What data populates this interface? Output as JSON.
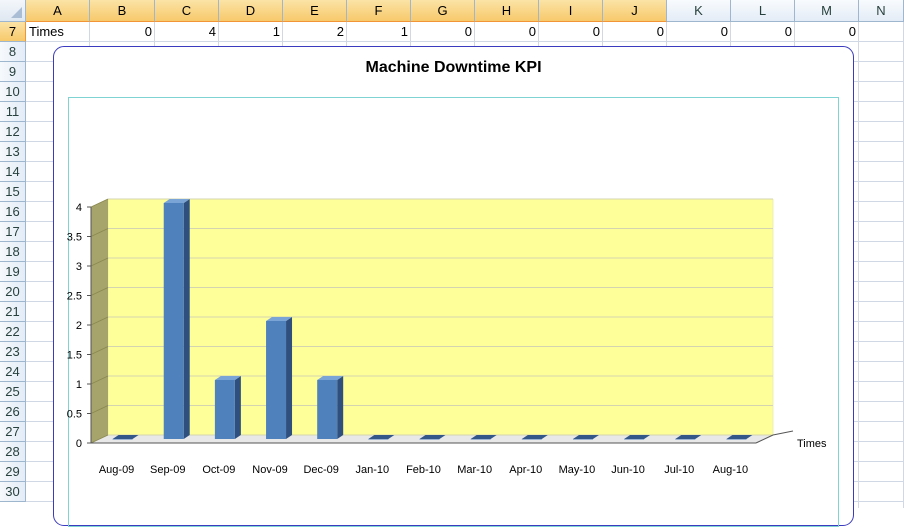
{
  "sheet": {
    "columns": [
      "A",
      "B",
      "C",
      "D",
      "E",
      "F",
      "G",
      "H",
      "I",
      "J",
      "K",
      "L",
      "M",
      "N"
    ],
    "rows": [
      "7",
      "8",
      "9",
      "10",
      "11",
      "12",
      "13",
      "14",
      "15",
      "16",
      "17",
      "18",
      "19",
      "20",
      "21",
      "22",
      "23",
      "24",
      "25",
      "26",
      "27",
      "28",
      "29",
      "30"
    ],
    "row7": {
      "label": "Times",
      "values": [
        "0",
        "4",
        "1",
        "2",
        "1",
        "0",
        "0",
        "0",
        "0",
        "0",
        "0",
        "0"
      ]
    }
  },
  "chart": {
    "title": "Machine Downtime KPI",
    "colors": {
      "wall": "#ffff99",
      "side_wall": "#a6a46a",
      "bar": "#4f81bd",
      "bar_top": "#7aa3d6",
      "bar_side": "#2f4f7f"
    }
  },
  "chart_data": {
    "type": "bar",
    "title": "Machine Downtime KPI",
    "categories": [
      "Aug-09",
      "Sep-09",
      "Oct-09",
      "Nov-09",
      "Dec-09",
      "Jan-10",
      "Feb-10",
      "Mar-10",
      "Apr-10",
      "May-10",
      "Jun-10",
      "Jul-10",
      "Aug-10"
    ],
    "series": [
      {
        "name": "Times",
        "values": [
          0,
          4,
          1,
          2,
          1,
          0,
          0,
          0,
          0,
          0,
          0,
          0,
          0
        ]
      }
    ],
    "ylim": [
      0,
      4
    ],
    "yticks": [
      "0",
      "0.5",
      "1",
      "1.5",
      "2",
      "2.5",
      "3",
      "3.5",
      "4"
    ],
    "grid": true,
    "style": "3d-column"
  }
}
